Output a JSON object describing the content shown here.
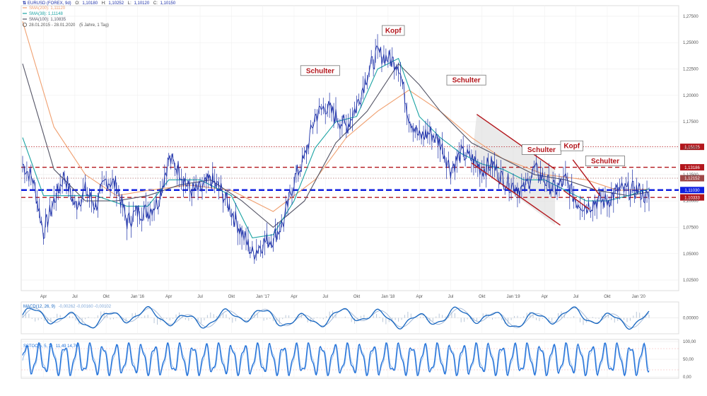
{
  "legend": {
    "symbol": "EURUSD (FOREX, 9d)",
    "open_label": "O:",
    "open": "1,10180",
    "high_label": "H:",
    "high": "1,10252",
    "low_label": "L:",
    "low": "1,10120",
    "close_label": "C:",
    "close": "1,10150",
    "sma200": "SMA(200): 1,11120",
    "sma38": "SMA(38): 1,11148",
    "sma100": "SMA(100): 1,10835",
    "period": "28.01.2015 - 28.01.2020",
    "period_note": "(5 Jahre, 1 Tag)"
  },
  "macd_label": "MACD(12, 26, 9)",
  "macd_values": "-0,00262  -0,00160  -0,00102",
  "sstoc_label": "SSTOC(5, 5, 3)",
  "sstoc_values": "11,49  14,76",
  "colors": {
    "price": "#1b2fa8",
    "sma38": "#1aa3a3",
    "sma100": "#555566",
    "sma200": "#f0a070",
    "red": "#b3161c",
    "blue": "#1020e0",
    "macd": "#1565c0",
    "stoc": "#1e6fd9"
  },
  "chart_data": [
    {
      "type": "line",
      "x_axis_ticks": [
        "Apr",
        "Jul",
        "Okt",
        "Jan '16",
        "Apr",
        "Jul",
        "Okt",
        "Jan '17",
        "Apr",
        "Jul",
        "Okt",
        "Jan '18",
        "Apr",
        "Jul",
        "Okt",
        "Jan '19",
        "Apr",
        "Jul",
        "Okt",
        "Jan '20"
      ],
      "y_axis_ticks": [
        "1,27500",
        "1,25000",
        "1,22500",
        "1,20000",
        "1,17500",
        "1,15000",
        "1,12500",
        "1,10000",
        "1,07500",
        "1,05000",
        "1,02500"
      ],
      "ylim": [
        1.015,
        1.285
      ],
      "x_months_range": [
        0,
        60
      ],
      "series": [
        {
          "key": "price",
          "points": [
            [
              0,
              1.135
            ],
            [
              1,
              1.12
            ],
            [
              2,
              1.07
            ],
            [
              3,
              1.1
            ],
            [
              4,
              1.125
            ],
            [
              5,
              1.095
            ],
            [
              6,
              1.11
            ],
            [
              7,
              1.095
            ],
            [
              8,
              1.12
            ],
            [
              9,
              1.115
            ],
            [
              10,
              1.08
            ],
            [
              11,
              1.09
            ],
            [
              12,
              1.09
            ],
            [
              13,
              1.1
            ],
            [
              14,
              1.14
            ],
            [
              15,
              1.13
            ],
            [
              16,
              1.11
            ],
            [
              17,
              1.11
            ],
            [
              18,
              1.12
            ],
            [
              19,
              1.11
            ],
            [
              20,
              1.09
            ],
            [
              21,
              1.07
            ],
            [
              22,
              1.05
            ],
            [
              23,
              1.06
            ],
            [
              24,
              1.065
            ],
            [
              25,
              1.08
            ],
            [
              26,
              1.12
            ],
            [
              27,
              1.14
            ],
            [
              28,
              1.18
            ],
            [
              29,
              1.19
            ],
            [
              30,
              1.18
            ],
            [
              31,
              1.17
            ],
            [
              32,
              1.19
            ],
            [
              33,
              1.22
            ],
            [
              34,
              1.24
            ],
            [
              35,
              1.235
            ],
            [
              36,
              1.23
            ],
            [
              37,
              1.18
            ],
            [
              38,
              1.16
            ],
            [
              39,
              1.165
            ],
            [
              40,
              1.155
            ],
            [
              41,
              1.13
            ],
            [
              42,
              1.145
            ],
            [
              43,
              1.14
            ],
            [
              44,
              1.13
            ],
            [
              45,
              1.135
            ],
            [
              46,
              1.12
            ],
            [
              47,
              1.115
            ],
            [
              48,
              1.11
            ],
            [
              49,
              1.13
            ],
            [
              50,
              1.12
            ],
            [
              51,
              1.11
            ],
            [
              52,
              1.12
            ],
            [
              53,
              1.1
            ],
            [
              54,
              1.095
            ],
            [
              55,
              1.1
            ],
            [
              56,
              1.1
            ],
            [
              57,
              1.11
            ],
            [
              58,
              1.11
            ],
            [
              59,
              1.11
            ],
            [
              60,
              1.1015
            ]
          ]
        },
        {
          "key": "sma38",
          "points": [
            [
              0,
              1.16
            ],
            [
              2,
              1.105
            ],
            [
              4,
              1.105
            ],
            [
              7,
              1.105
            ],
            [
              10,
              1.095
            ],
            [
              12,
              1.095
            ],
            [
              14,
              1.12
            ],
            [
              17,
              1.12
            ],
            [
              20,
              1.105
            ],
            [
              22,
              1.065
            ],
            [
              24,
              1.068
            ],
            [
              26,
              1.1
            ],
            [
              28,
              1.15
            ],
            [
              30,
              1.175
            ],
            [
              32,
              1.18
            ],
            [
              34,
              1.225
            ],
            [
              36,
              1.235
            ],
            [
              38,
              1.18
            ],
            [
              40,
              1.16
            ],
            [
              42,
              1.145
            ],
            [
              44,
              1.135
            ],
            [
              46,
              1.13
            ],
            [
              48,
              1.12
            ],
            [
              50,
              1.12
            ],
            [
              52,
              1.11
            ],
            [
              54,
              1.1
            ],
            [
              56,
              1.1
            ],
            [
              58,
              1.105
            ],
            [
              60,
              1.1115
            ]
          ]
        },
        {
          "key": "sma100",
          "points": [
            [
              0,
              1.23
            ],
            [
              3,
              1.13
            ],
            [
              6,
              1.1
            ],
            [
              9,
              1.1
            ],
            [
              12,
              1.105
            ],
            [
              15,
              1.115
            ],
            [
              18,
              1.12
            ],
            [
              21,
              1.1
            ],
            [
              24,
              1.075
            ],
            [
              27,
              1.1
            ],
            [
              30,
              1.155
            ],
            [
              33,
              1.185
            ],
            [
              36,
              1.23
            ],
            [
              38,
              1.21
            ],
            [
              40,
              1.185
            ],
            [
              43,
              1.155
            ],
            [
              46,
              1.14
            ],
            [
              49,
              1.125
            ],
            [
              52,
              1.12
            ],
            [
              55,
              1.11
            ],
            [
              58,
              1.105
            ],
            [
              60,
              1.1084
            ]
          ]
        },
        {
          "key": "sma200",
          "points": [
            [
              0,
              1.27
            ],
            [
              3,
              1.17
            ],
            [
              6,
              1.125
            ],
            [
              9,
              1.105
            ],
            [
              12,
              1.11
            ],
            [
              16,
              1.115
            ],
            [
              20,
              1.11
            ],
            [
              24,
              1.09
            ],
            [
              28,
              1.12
            ],
            [
              31,
              1.16
            ],
            [
              34,
              1.185
            ],
            [
              37,
              1.205
            ],
            [
              40,
              1.185
            ],
            [
              43,
              1.16
            ],
            [
              46,
              1.14
            ],
            [
              50,
              1.125
            ],
            [
              54,
              1.12
            ],
            [
              57,
              1.11
            ],
            [
              60,
              1.1112
            ]
          ]
        }
      ],
      "horizontal_lines": [
        {
          "value": 1.15125,
          "label": "1,15125",
          "style": "dotted-red"
        },
        {
          "value": 1.13186,
          "label": "1,13186",
          "style": "dashed-red"
        },
        {
          "value": 1.12152,
          "label": "1,12152",
          "style": "dotted-gray"
        },
        {
          "value": 1.1103,
          "label": "1,11030",
          "style": "dashed-blue"
        },
        {
          "value": 1.10333,
          "label": "1,10333",
          "style": "dashed-red"
        }
      ],
      "annotations": [
        {
          "text": "Schulter",
          "x": 28.5,
          "y": 1.2235
        },
        {
          "text": "Kopf",
          "x": 35.5,
          "y": 1.2615
        },
        {
          "text": "Schulter",
          "x": 42.5,
          "y": 1.2145
        },
        {
          "text": "Schulter",
          "x": 49.7,
          "y": 1.1487
        },
        {
          "text": "Kopf",
          "x": 52.6,
          "y": 1.1522
        },
        {
          "text": "Schulter",
          "x": 55.8,
          "y": 1.1379
        }
      ],
      "channels": [
        {
          "upper": [
            [
              43.5,
              1.182
            ],
            [
              51,
              1.13
            ]
          ],
          "lower": [
            [
              43,
              1.136
            ],
            [
              51.5,
              1.077
            ]
          ]
        },
        {
          "upper": [
            [
              52.7,
              1.139
            ],
            [
              55.3,
              1.105
            ]
          ],
          "lower": [
            [
              51.8,
              1.11
            ],
            [
              54.3,
              1.092
            ]
          ]
        }
      ]
    },
    {
      "type": "line",
      "title": "MACD(12, 26, 9)",
      "y_axis_ticks": [
        "0,00000"
      ],
      "ylim": [
        -0.04,
        0.04
      ]
    },
    {
      "type": "line",
      "title": "SSTOC(5, 5, 3)",
      "y_axis_ticks": [
        "100,00",
        "50,00",
        "0,00"
      ],
      "ylim": [
        0,
        100
      ]
    }
  ]
}
